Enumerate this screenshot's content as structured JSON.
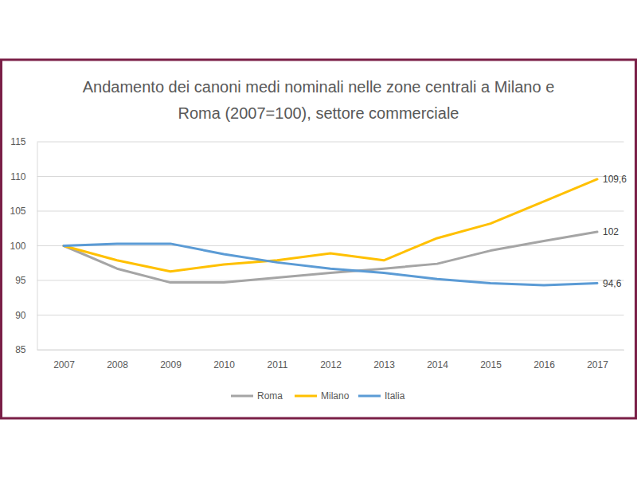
{
  "chart_data": {
    "type": "line",
    "title": [
      "Andamento dei canoni medi nominali nelle zone centrali a Milano e",
      "Roma (2007=100), settore commerciale"
    ],
    "categories": [
      "2007",
      "2008",
      "2009",
      "2010",
      "2011",
      "2012",
      "2013",
      "2014",
      "2015",
      "2016",
      "2017"
    ],
    "series": [
      {
        "name": "Roma",
        "color": "#a5a5a5",
        "values": [
          100,
          96.7,
          94.7,
          94.7,
          95.4,
          96.1,
          96.7,
          97.4,
          99.3,
          100.7,
          102
        ],
        "value_labels": [
          null,
          null,
          null,
          null,
          null,
          null,
          null,
          null,
          null,
          null,
          "102"
        ]
      },
      {
        "name": "Milano",
        "color": "#ffc000",
        "values": [
          100,
          97.9,
          96.3,
          97.3,
          97.9,
          98.9,
          97.9,
          101.1,
          103.2,
          106.4,
          109.6
        ],
        "value_labels": [
          null,
          null,
          null,
          null,
          null,
          null,
          null,
          null,
          null,
          null,
          "109,6"
        ]
      },
      {
        "name": "Italia",
        "color": "#5b9bd5",
        "values": [
          100,
          100.3,
          100.3,
          98.8,
          97.6,
          96.7,
          96.1,
          95.2,
          94.6,
          94.3,
          94.6
        ],
        "value_labels": [
          null,
          null,
          null,
          null,
          null,
          null,
          null,
          null,
          null,
          null,
          "94,6"
        ]
      }
    ],
    "ylim": [
      85,
      115
    ],
    "yticks": [
      85,
      90,
      95,
      100,
      105,
      110,
      115
    ],
    "grid": true,
    "legend": "bottom",
    "data_labels": true
  }
}
